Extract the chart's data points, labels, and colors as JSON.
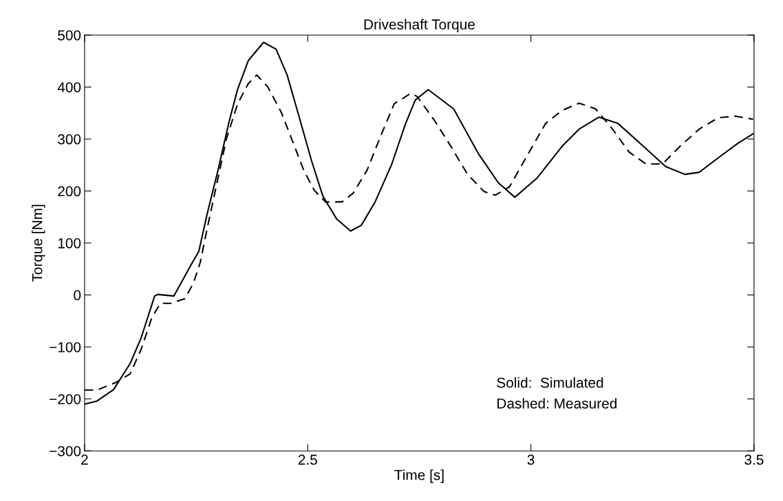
{
  "chart_data": {
    "type": "line",
    "title": "Driveshaft Torque",
    "xlabel": "Time [s]",
    "ylabel": "Torque [Nm]",
    "xlim": [
      2,
      3.5
    ],
    "xticks": [
      2,
      2.5,
      3,
      3.5
    ],
    "ylim": [
      -300,
      500
    ],
    "yticks": [
      -300,
      -200,
      -100,
      0,
      100,
      200,
      300,
      400,
      500
    ],
    "grid": false,
    "legend": false,
    "marker": "none",
    "annotations": [
      "Solid:  Simulated",
      "Dashed: Measured"
    ],
    "series": [
      {
        "color": "#000000",
        "line_style": "solid",
        "x": [
          2.0,
          2.028,
          2.065,
          2.102,
          2.127,
          2.157,
          2.164,
          2.2,
          2.213,
          2.238,
          2.256,
          2.275,
          2.299,
          2.324,
          2.343,
          2.367,
          2.401,
          2.429,
          2.454,
          2.478,
          2.509,
          2.534,
          2.565,
          2.596,
          2.62,
          2.651,
          2.688,
          2.719,
          2.741,
          2.77,
          2.827,
          2.883,
          2.927,
          2.964,
          3.014,
          3.07,
          3.108,
          3.152,
          3.195,
          3.252,
          3.302,
          3.345,
          3.377,
          3.42,
          3.464,
          3.498
        ],
        "values": [
          -210,
          -204,
          -182,
          -132,
          -82,
          -2,
          1,
          -2,
          18,
          57,
          84,
          157,
          240,
          334,
          396,
          451,
          486,
          473,
          423,
          351,
          257,
          190,
          146,
          123,
          134,
          179,
          251,
          329,
          375,
          395,
          358,
          271,
          216,
          188,
          225,
          286,
          319,
          342,
          330,
          286,
          247,
          232,
          236,
          264,
          292,
          310
        ]
      },
      {
        "color": "#000000",
        "line_style": "dashed",
        "x": [
          2.0,
          2.028,
          2.071,
          2.102,
          2.127,
          2.151,
          2.17,
          2.194,
          2.225,
          2.244,
          2.259,
          2.275,
          2.293,
          2.318,
          2.343,
          2.367,
          2.386,
          2.41,
          2.441,
          2.466,
          2.491,
          2.515,
          2.54,
          2.577,
          2.602,
          2.633,
          2.664,
          2.694,
          2.731,
          2.745,
          2.783,
          2.82,
          2.858,
          2.895,
          2.92,
          2.952,
          2.989,
          3.033,
          3.07,
          3.108,
          3.145,
          3.183,
          3.22,
          3.258,
          3.295,
          3.333,
          3.377,
          3.42,
          3.458,
          3.498
        ],
        "values": [
          -183,
          -183,
          -168,
          -152,
          -104,
          -43,
          -16,
          -16,
          -7,
          23,
          62,
          129,
          201,
          301,
          368,
          407,
          423,
          401,
          351,
          296,
          240,
          201,
          179,
          179,
          196,
          240,
          307,
          368,
          388,
          382,
          337,
          287,
          232,
          199,
          192,
          208,
          264,
          330,
          355,
          369,
          358,
          319,
          275,
          252,
          252,
          285,
          319,
          341,
          344,
          338
        ]
      }
    ]
  }
}
